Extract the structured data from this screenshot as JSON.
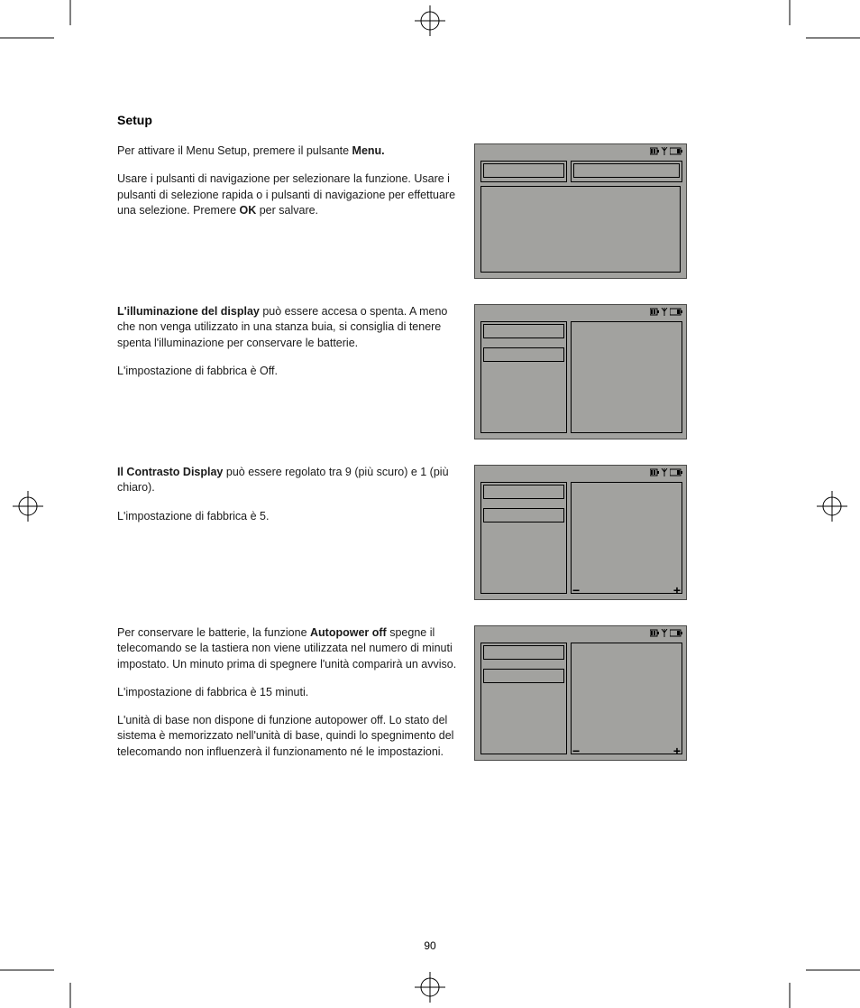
{
  "page_number": "90",
  "title": "Setup",
  "sections": [
    {
      "paragraphs": [
        {
          "pre": "Per attivare il Menu Setup, premere il pulsante ",
          "bold": "Menu.",
          "post": ""
        },
        {
          "pre": "Usare i pulsanti di navigazione per selezionare la funzione. Usare i pulsanti di selezione rapida o i pulsanti di navigazione per effettuare una selezione. Premere ",
          "bold": "OK",
          "post": " per salvare."
        }
      ],
      "lcd": {
        "left_style": "h-short",
        "left_items": 1,
        "right_panel": true,
        "minus_plus": false,
        "extra_top_box": true
      }
    },
    {
      "paragraphs": [
        {
          "pre": "",
          "bold": "L'illuminazione del display",
          "post": " può essere accesa o spenta. A meno che non venga utilizzato in una stanza buia, si consiglia di tenere spenta l'illuminazione per conservare le batterie."
        },
        {
          "pre": "L'impostazione di fabbrica è Off.",
          "bold": "",
          "post": ""
        }
      ],
      "lcd": {
        "left_style": "h-tall",
        "left_items": 2,
        "right_panel": true,
        "minus_plus": false,
        "extra_top_box": false
      }
    },
    {
      "paragraphs": [
        {
          "pre": "",
          "bold": "Il Contrasto Display",
          "post": " può essere regolato tra 9 (più scuro) e 1 (più chiaro)."
        },
        {
          "pre": "L'impostazione di fabbrica è 5.",
          "bold": "",
          "post": ""
        }
      ],
      "lcd": {
        "left_style": "h-tall",
        "left_items": 2,
        "right_panel": true,
        "minus_plus": true,
        "extra_top_box": false
      }
    },
    {
      "paragraphs": [
        {
          "pre": "Per conservare le batterie, la funzione ",
          "bold": "Autopower off",
          "post": " spegne il telecomando se la tastiera non viene utilizzata nel numero di minuti impostato. Un minuto prima di spegnere l'unità compari­rà un avviso."
        },
        {
          "pre": "L'impostazione di fabbrica è 15 minuti.",
          "bold": "",
          "post": ""
        },
        {
          "pre": "L'unità di base non dispone di funzione autopower off. Lo stato del sistema è memorizzato nell'unità di base, quindi lo spegnimento del telecomando non influenzerà il funzionamento né le impostazioni.",
          "bold": "",
          "post": ""
        }
      ],
      "lcd": {
        "left_style": "h-tall",
        "left_items": 2,
        "right_panel": true,
        "minus_plus": true,
        "extra_top_box": false
      }
    }
  ],
  "colors": {
    "lcd_bg": "#a2a29f",
    "lcd_border": "#4a4a48",
    "text": "#1a1a1a"
  }
}
